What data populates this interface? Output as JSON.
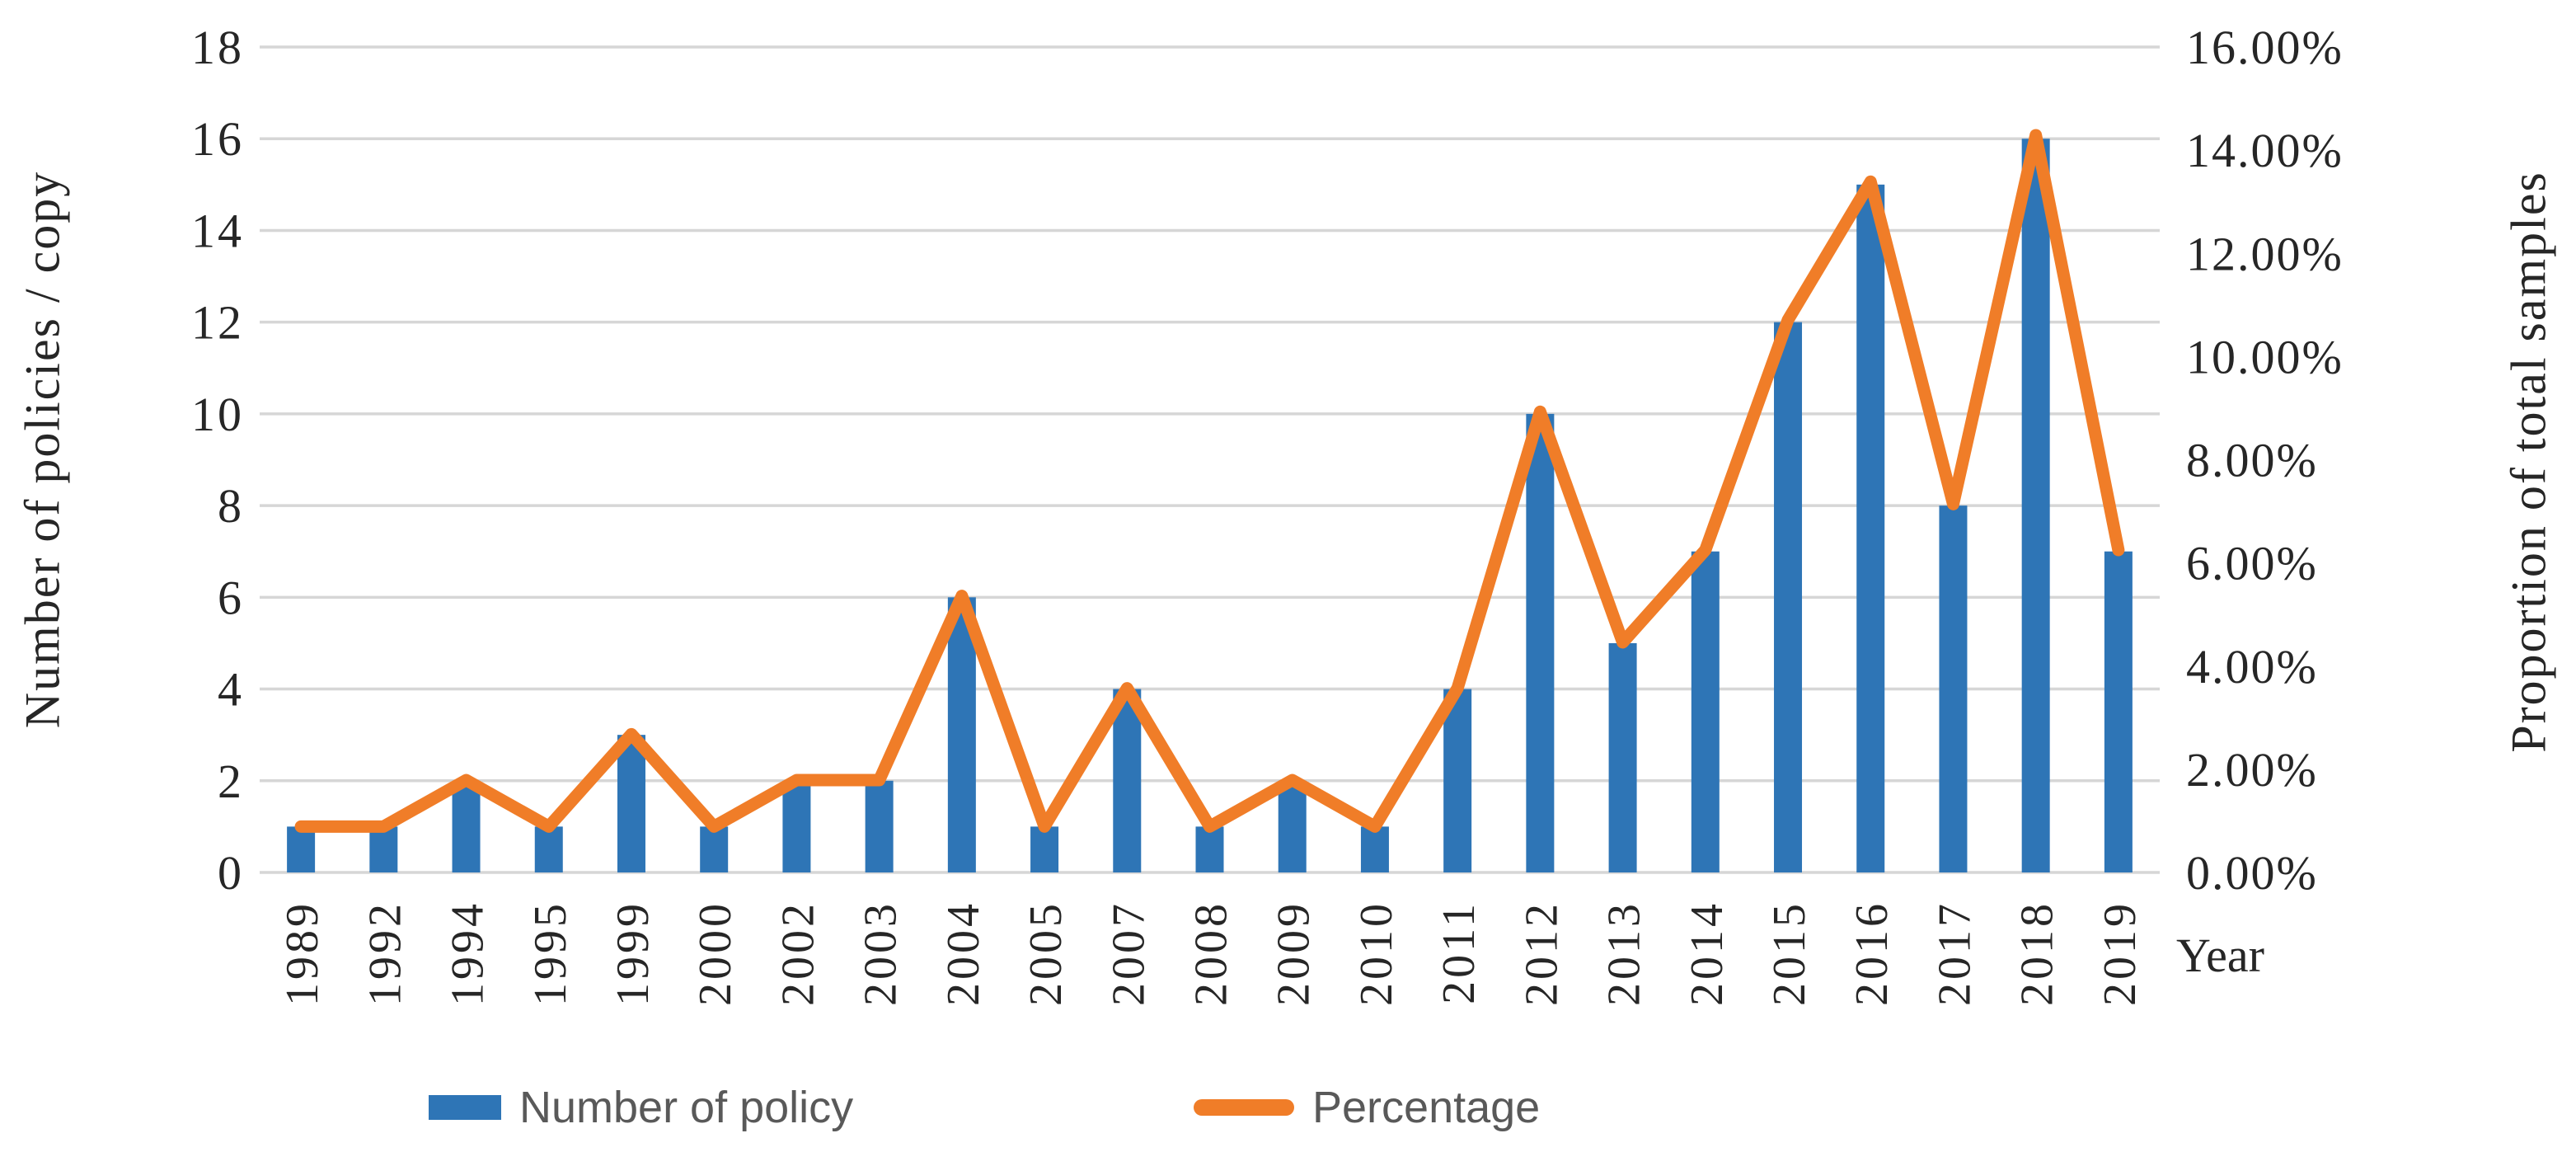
{
  "figure": {
    "left_axis": {
      "title": "Number of policies / copy",
      "min": 0,
      "max": 18,
      "step": 2,
      "tick_labels": [
        "0",
        "2",
        "4",
        "6",
        "8",
        "10",
        "12",
        "14",
        "16",
        "18"
      ]
    },
    "right_axis": {
      "title": "Proportion of total samples",
      "min": 0,
      "max": 16,
      "step": 2,
      "tick_labels": [
        "0.00%",
        "2.00%",
        "4.00%",
        "6.00%",
        "8.00%",
        "10.00%",
        "12.00%",
        "14.00%",
        "16.00%"
      ]
    },
    "x_axis": {
      "title": "Year"
    },
    "legend": {
      "bar_label": "Number of policy",
      "line_label": "Percentage"
    },
    "colors": {
      "bar": "#2E75B6",
      "line": "#F07D28",
      "gridline": "#D6D6D6",
      "tick_text": "#262626",
      "legend_text": "#595959"
    }
  },
  "chart_data": {
    "type": "combo",
    "categories": [
      "1989",
      "1992",
      "1994",
      "1995",
      "1999",
      "2000",
      "2002",
      "2003",
      "2004",
      "2005",
      "2007",
      "2008",
      "2009",
      "2010",
      "2011",
      "2012",
      "2013",
      "2014",
      "2015",
      "2016",
      "2017",
      "2018",
      "2019"
    ],
    "series": [
      {
        "name": "Number of policy",
        "chart": "bar",
        "axis": "left",
        "color": "#2E75B6",
        "values": [
          1,
          1,
          2,
          1,
          3,
          1,
          2,
          2,
          6,
          1,
          4,
          1,
          2,
          1,
          4,
          10,
          5,
          7,
          12,
          15,
          8,
          16,
          7
        ]
      },
      {
        "name": "Percentage",
        "chart": "line",
        "axis": "right",
        "unit": "%",
        "color": "#F07D28",
        "values": [
          0.89,
          0.89,
          1.79,
          0.89,
          2.68,
          0.89,
          1.79,
          1.79,
          5.36,
          0.89,
          3.57,
          0.89,
          1.79,
          0.89,
          3.57,
          8.93,
          4.46,
          6.25,
          10.71,
          13.39,
          7.14,
          14.29,
          6.25
        ]
      }
    ],
    "title": "",
    "xlabel": "Year",
    "ylabel": "Number of policies / copy",
    "y2label": "Proportion of total samples",
    "left_ylim": [
      0,
      18
    ],
    "right_ylim_percent": [
      0,
      16
    ],
    "grid": true,
    "legend_position": "bottom"
  }
}
